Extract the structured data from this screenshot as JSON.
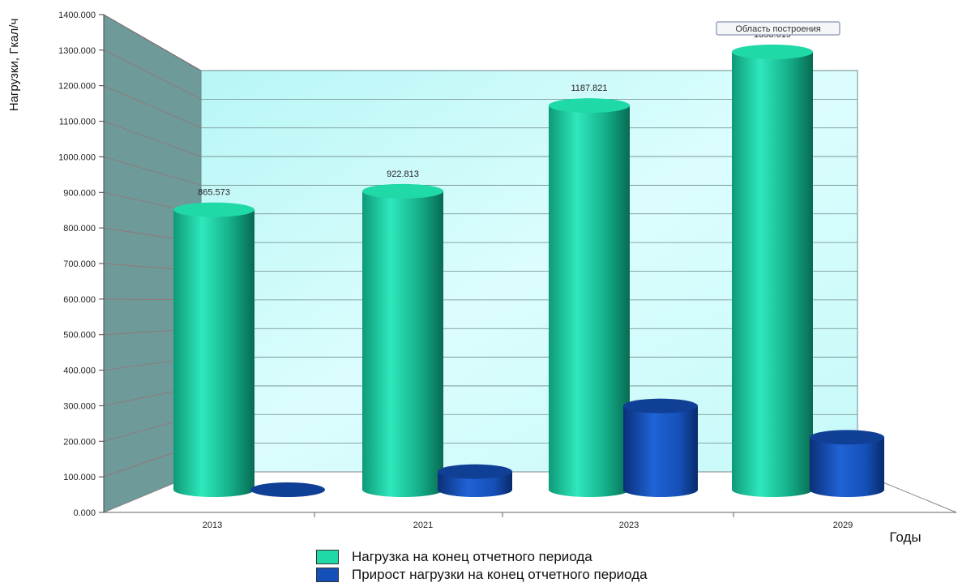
{
  "chart_data": {
    "type": "bar",
    "ylabel": "Нагрузки, Гкал/ч",
    "xlabel": "Годы",
    "categories": [
      "2013",
      "2021",
      "2023",
      "2029"
    ],
    "ylim": [
      0,
      1400
    ],
    "y_ticks": [
      "0.000",
      "100.000",
      "200.000",
      "300.000",
      "400.000",
      "500.000",
      "600.000",
      "700.000",
      "800.000",
      "900.000",
      "1000.000",
      "1100.000",
      "1200.000",
      "1300.000",
      "1400.000"
    ],
    "grid": true,
    "legend_position": "bottom",
    "series": [
      {
        "name": "Нагрузка на конец отчетного периода",
        "values": [
          865.573,
          922.813,
          1187.821,
          1353.619
        ],
        "data_labels": [
          "865.573",
          "922.813",
          "1187.821",
          "1353.619"
        ],
        "color": "#1fbf95"
      },
      {
        "name": "Прирост нагрузки на конец отчетного периода",
        "values": [
          0,
          57.24,
          265.008,
          165.798
        ],
        "color": "#1550b8"
      }
    ],
    "tooltip": "Область построения"
  },
  "colors": {
    "back_wall": "#ccfbfb",
    "side_wall": "#6f9a9a",
    "grid": "#6f8a8a"
  }
}
